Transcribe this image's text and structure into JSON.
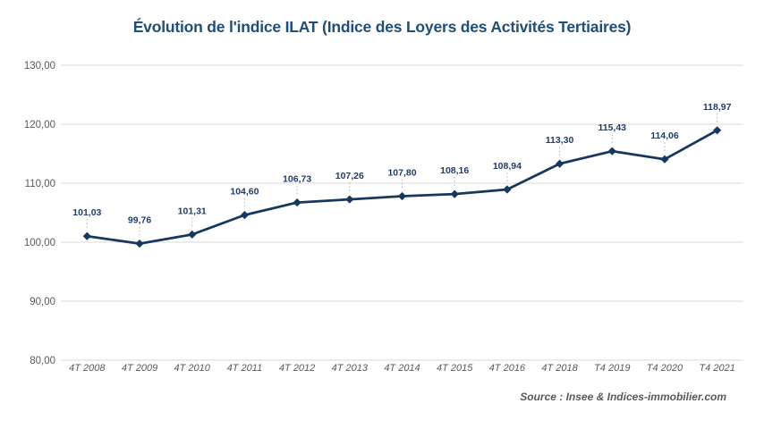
{
  "chart_data": {
    "type": "line",
    "title": "Évolution de l'indice ILAT (Indice des Loyers des Activités Tertiaires)",
    "source": "Source : Insee & Indices-immobilier.com",
    "categories": [
      "4T 2008",
      "4T 2009",
      "4T 2010",
      "4T 2011",
      "4T 2012",
      "4T 2013",
      "4T 2014",
      "4T 2015",
      "4T 2016",
      "4T 2018",
      "T4 2019",
      "T4 2020",
      "T4 2021"
    ],
    "values": [
      101.03,
      99.76,
      101.31,
      104.6,
      106.73,
      107.26,
      107.8,
      108.16,
      108.94,
      113.3,
      115.43,
      114.06,
      118.97
    ],
    "value_labels": [
      "101,03",
      "99,76",
      "101,31",
      "104,60",
      "106,73",
      "107,26",
      "107,80",
      "108,16",
      "108,94",
      "113,30",
      "115,43",
      "114,06",
      "118,97"
    ],
    "ylim": [
      80,
      130
    ],
    "ytick_step": 10,
    "ytick_labels": [
      "80,00",
      "90,00",
      "100,00",
      "110,00",
      "120,00",
      "130,00"
    ],
    "xlabel": "",
    "ylabel": "",
    "grid": "horizontal",
    "legend": "none",
    "colors": {
      "line": "#17375d",
      "marker": "#17375d",
      "data_label": "#1f3d6b",
      "title": "#1f4e79",
      "axis_text": "#595959",
      "gridline": "#d9d9d9",
      "leader_line": "#bfbfbf",
      "background": "#ffffff"
    }
  }
}
